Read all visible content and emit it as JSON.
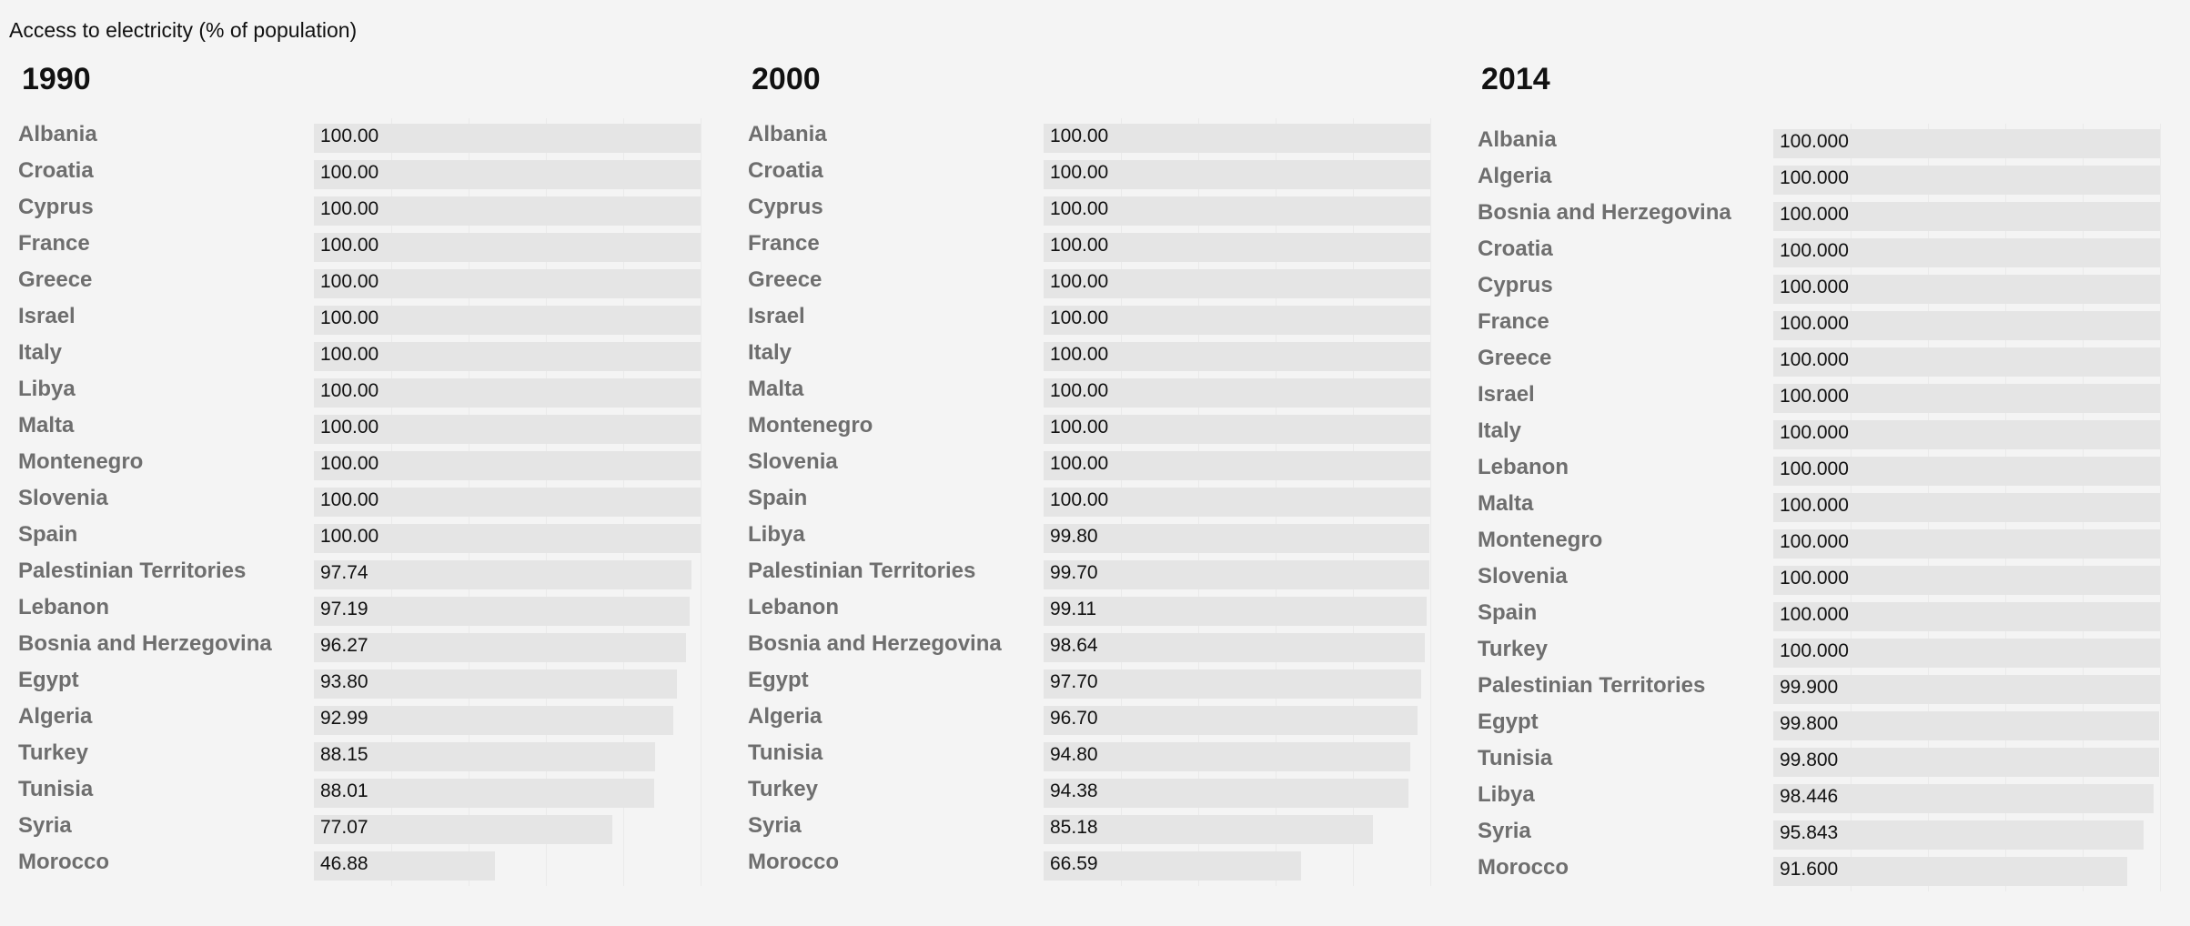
{
  "title": "Access to electricity (% of population)",
  "chart_data": [
    {
      "type": "bar",
      "year": "1990",
      "decimals": 2,
      "xlim": [
        0,
        100
      ],
      "categories": [
        "Albania",
        "Croatia",
        "Cyprus",
        "France",
        "Greece",
        "Israel",
        "Italy",
        "Libya",
        "Malta",
        "Montenegro",
        "Slovenia",
        "Spain",
        "Palestinian Territories",
        "Lebanon",
        "Bosnia and Herzegovina",
        "Egypt",
        "Algeria",
        "Turkey",
        "Tunisia",
        "Syria",
        "Morocco"
      ],
      "values": [
        100,
        100,
        100,
        100,
        100,
        100,
        100,
        100,
        100,
        100,
        100,
        100,
        97.74,
        97.19,
        96.27,
        93.8,
        92.99,
        88.15,
        88.01,
        77.07,
        46.88
      ]
    },
    {
      "type": "bar",
      "year": "2000",
      "decimals": 2,
      "xlim": [
        0,
        100
      ],
      "categories": [
        "Albania",
        "Croatia",
        "Cyprus",
        "France",
        "Greece",
        "Israel",
        "Italy",
        "Malta",
        "Montenegro",
        "Slovenia",
        "Spain",
        "Libya",
        "Palestinian Territories",
        "Lebanon",
        "Bosnia and Herzegovina",
        "Egypt",
        "Algeria",
        "Tunisia",
        "Turkey",
        "Syria",
        "Morocco"
      ],
      "values": [
        100,
        100,
        100,
        100,
        100,
        100,
        100,
        100,
        100,
        100,
        100,
        99.8,
        99.7,
        99.11,
        98.64,
        97.7,
        96.7,
        94.8,
        94.38,
        85.18,
        66.59
      ]
    },
    {
      "type": "bar",
      "year": "2014",
      "decimals": 3,
      "xlim": [
        0,
        100
      ],
      "categories": [
        "Albania",
        "Algeria",
        "Bosnia and Herzegovina",
        "Croatia",
        "Cyprus",
        "France",
        "Greece",
        "Israel",
        "Italy",
        "Lebanon",
        "Malta",
        "Montenegro",
        "Slovenia",
        "Spain",
        "Turkey",
        "Palestinian Territories",
        "Egypt",
        "Tunisia",
        "Libya",
        "Syria",
        "Morocco"
      ],
      "values": [
        100,
        100,
        100,
        100,
        100,
        100,
        100,
        100,
        100,
        100,
        100,
        100,
        100,
        100,
        100,
        99.9,
        99.8,
        99.8,
        98.446,
        95.843,
        91.6
      ]
    }
  ]
}
